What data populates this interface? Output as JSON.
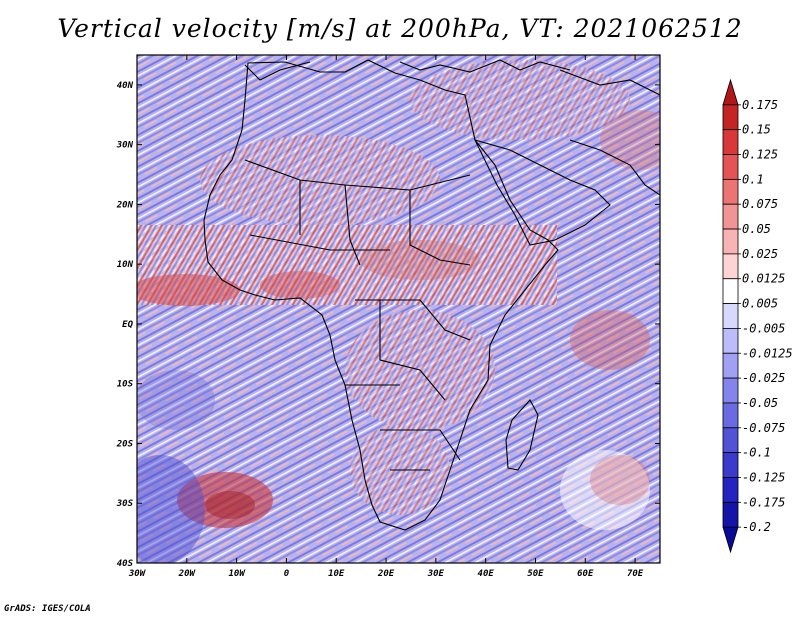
{
  "title": "Vertical velocity [m/s] at 200hPa, VT: 2021062512",
  "credit": "GrADS: IGES/COLA",
  "map": {
    "lat_labels": [
      "40N",
      "30N",
      "20N",
      "10N",
      "EQ",
      "10S",
      "20S",
      "30S",
      "40S"
    ],
    "lon_labels": [
      "30W",
      "20W",
      "10W",
      "0",
      "10E",
      "20E",
      "30E",
      "40E",
      "50E",
      "60E",
      "70E"
    ],
    "lat_range": [
      -40,
      45
    ],
    "lon_range": [
      -30,
      75
    ],
    "coastline_color": "#000000",
    "field_description_colors": {
      "positive": "#c8242a",
      "negative": "#3c3cc8",
      "neutral": "#ffffff"
    }
  },
  "colorbar": {
    "labels": [
      "0.175",
      "0.15",
      "0.125",
      "0.1",
      "0.075",
      "0.05",
      "0.025",
      "0.0125",
      "0.005",
      "-0.005",
      "-0.0125",
      "-0.025",
      "-0.05",
      "-0.075",
      "-0.1",
      "-0.125",
      "-0.175",
      "-0.2"
    ],
    "colors": [
      "#b01818",
      "#c42424",
      "#d83838",
      "#e45454",
      "#ec7474",
      "#f29494",
      "#f8b4b4",
      "#fcd4d4",
      "#ffffff",
      "#d8d8fc",
      "#bcbcfa",
      "#a0a0f4",
      "#8484ec",
      "#6a6ae2",
      "#5252d6",
      "#3a3acc",
      "#2424c0",
      "#1414a8",
      "#0a0a96"
    ]
  }
}
